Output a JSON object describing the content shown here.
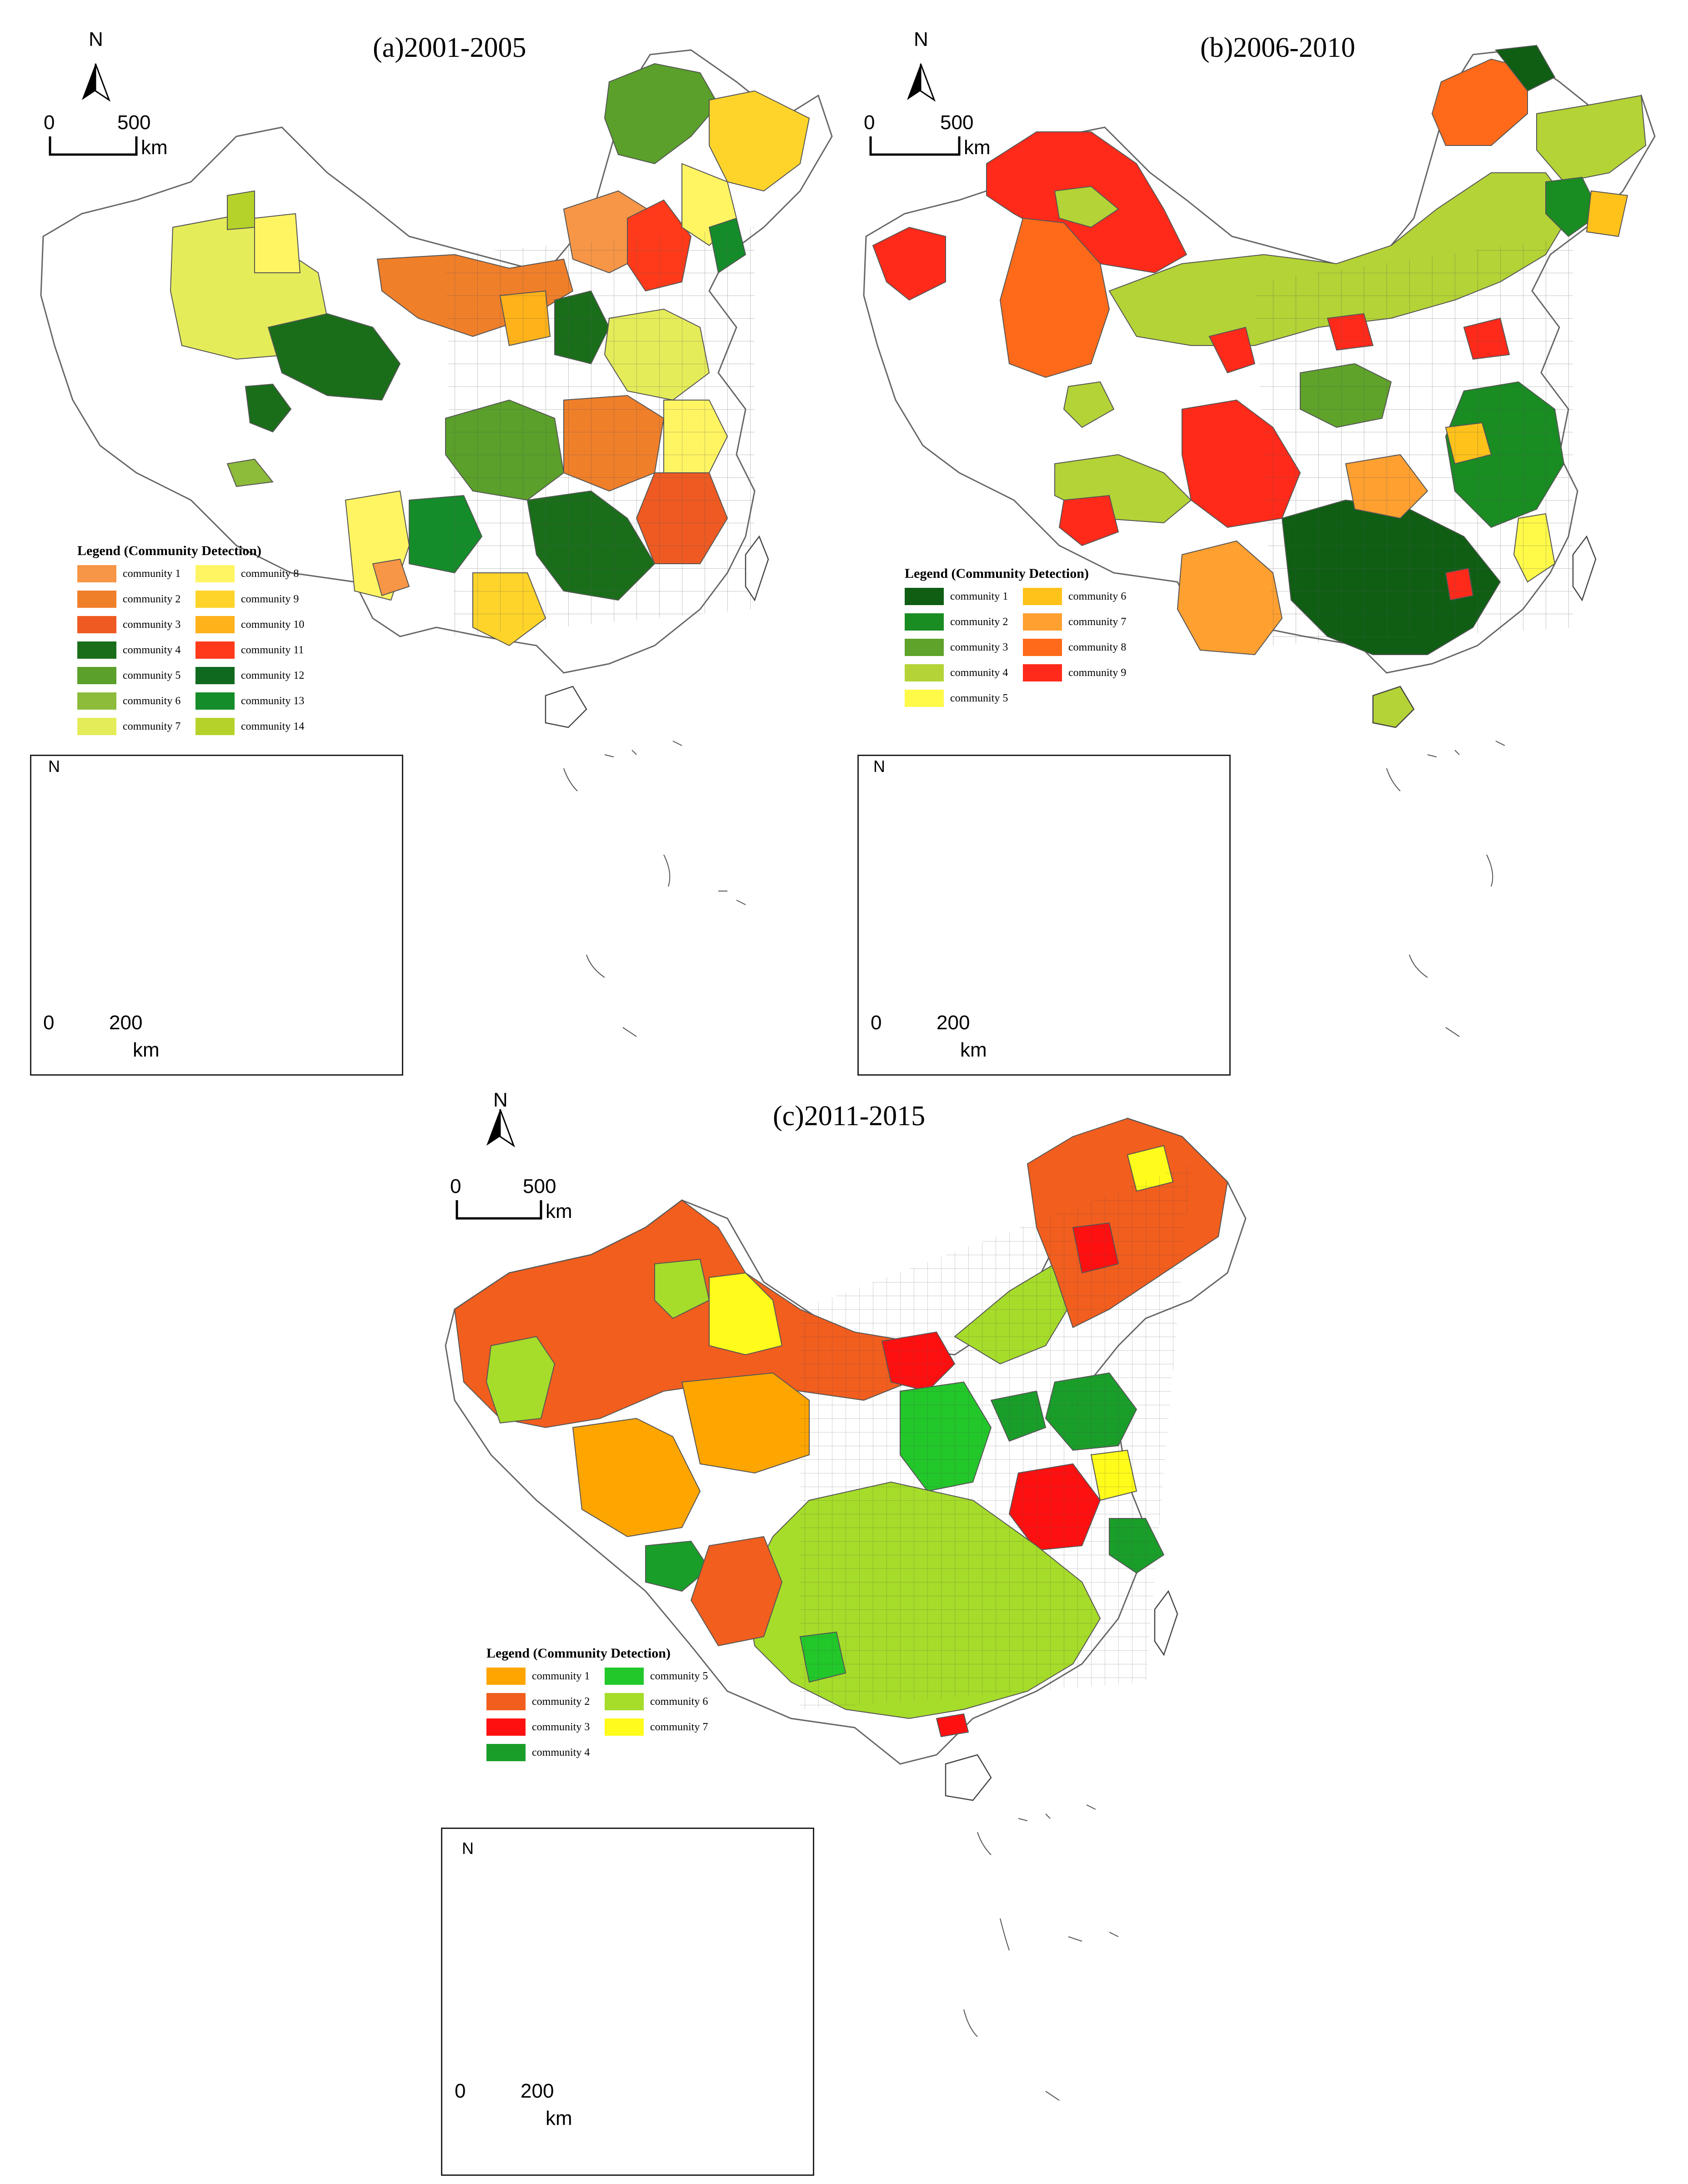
{
  "panels": [
    {
      "title": "(a)2001-2005",
      "scale": {
        "zero": "0",
        "value": "500",
        "unit": "km"
      },
      "inset_scale": {
        "zero": "0",
        "value": "200",
        "unit": "km"
      },
      "north": "N",
      "legend_title": "Legend (Community Detection)",
      "legend": [
        {
          "label": "community 1",
          "color": "#f79646"
        },
        {
          "label": "community 2",
          "color": "#f07f2a"
        },
        {
          "label": "community 3",
          "color": "#ee5a22"
        },
        {
          "label": "community 4",
          "color": "#1a6e1a"
        },
        {
          "label": "community 5",
          "color": "#5aa02a"
        },
        {
          "label": "community 6",
          "color": "#8dbb3a"
        },
        {
          "label": "community 7",
          "color": "#e5ec5a"
        },
        {
          "label": "community 8",
          "color": "#fff563"
        },
        {
          "label": "community 9",
          "color": "#ffd42a"
        },
        {
          "label": "community 10",
          "color": "#ffb21a"
        },
        {
          "label": "community 11",
          "color": "#ff3a1a"
        },
        {
          "label": "community 12",
          "color": "#0f6a1f"
        },
        {
          "label": "community 13",
          "color": "#148c2a"
        },
        {
          "label": "community 14",
          "color": "#b5d22a"
        }
      ]
    },
    {
      "title": "(b)2006-2010",
      "scale": {
        "zero": "0",
        "value": "500",
        "unit": "km"
      },
      "inset_scale": {
        "zero": "0",
        "value": "200",
        "unit": "km"
      },
      "north": "N",
      "legend_title": "Legend (Community Detection)",
      "legend": [
        {
          "label": "community 1",
          "color": "#0f5e14"
        },
        {
          "label": "community 2",
          "color": "#198c22"
        },
        {
          "label": "community 3",
          "color": "#5fa32a"
        },
        {
          "label": "community 4",
          "color": "#b3d336"
        },
        {
          "label": "community 5",
          "color": "#fffa48"
        },
        {
          "label": "community 6",
          "color": "#ffc21a"
        },
        {
          "label": "community 7",
          "color": "#ffa030"
        },
        {
          "label": "community 8",
          "color": "#ff6a1a"
        },
        {
          "label": "community 9",
          "color": "#ff2a1a"
        }
      ]
    },
    {
      "title": "(c)2011-2015",
      "scale": {
        "zero": "0",
        "value": "500",
        "unit": "km"
      },
      "inset_scale": {
        "zero": "0",
        "value": "200",
        "unit": "km"
      },
      "north": "N",
      "legend_title": "Legend (Community Detection)",
      "legend": [
        {
          "label": "community 1",
          "color": "#ffa500"
        },
        {
          "label": "community 2",
          "color": "#f25e1e"
        },
        {
          "label": "community 3",
          "color": "#ff1010"
        },
        {
          "label": "community 4",
          "color": "#1a9e2a"
        },
        {
          "label": "community 5",
          "color": "#22c72a"
        },
        {
          "label": "community 6",
          "color": "#a6dc2a"
        },
        {
          "label": "community 7",
          "color": "#fffb1a"
        }
      ]
    }
  ]
}
